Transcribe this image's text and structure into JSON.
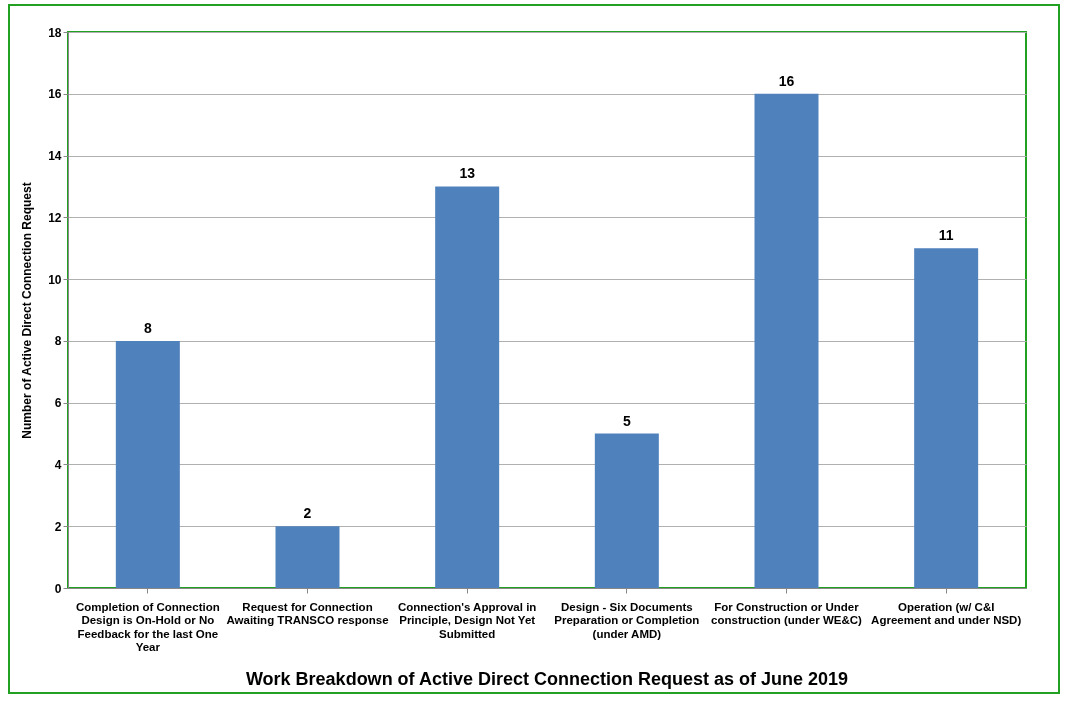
{
  "chart_data": {
    "type": "bar",
    "title": "Work Breakdown of Active Direct Connection Request as of June 2019",
    "ylabel": "Number of Active Direct Connection Request",
    "categories": [
      "Completion of Connection Design is On-Hold or No Feedback for the last One Year",
      "Request for Connection Awaiting TRANSCO response",
      "Connection's Approval in Principle, Design Not Yet Submitted",
      "Design - Six Documents Preparation or Completion (under AMD)",
      "For Construction or Under construction (under WE&C)",
      "Operation (w/ C&I Agreement and under NSD)"
    ],
    "values": [
      8,
      2,
      13,
      5,
      16,
      11
    ],
    "color": "#4f81bd",
    "ylim": [
      0,
      18
    ],
    "yticks": [
      0,
      2,
      4,
      6,
      8,
      10,
      12,
      14,
      16,
      18
    ],
    "grid": "y",
    "data_labels": true
  }
}
